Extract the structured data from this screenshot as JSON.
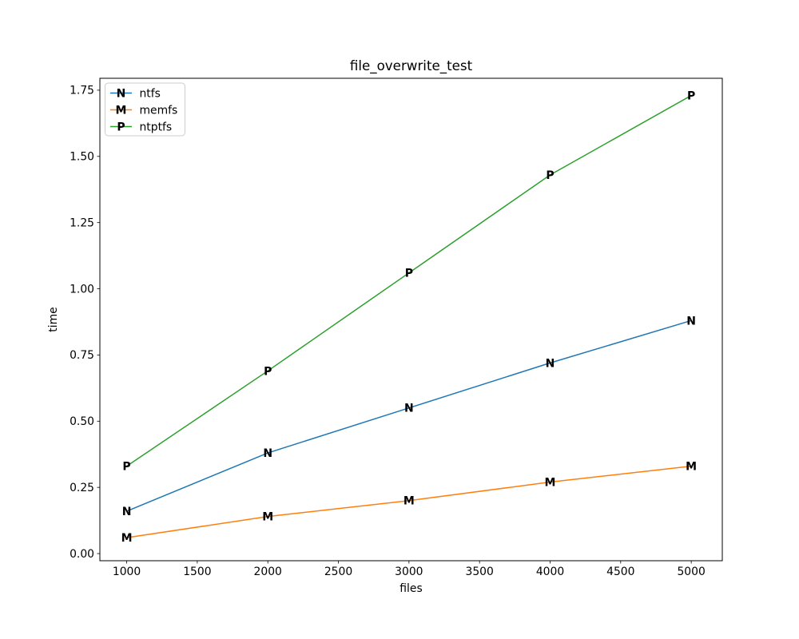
{
  "figure": {
    "title": "file_overwrite_test",
    "xlabel": "files",
    "ylabel": "time"
  },
  "chart_data": {
    "type": "line",
    "title": "file_overwrite_test",
    "xlabel": "files",
    "ylabel": "time",
    "x": [
      1000,
      2000,
      3000,
      4000,
      5000
    ],
    "series": [
      {
        "name": "ntfs",
        "marker": "N",
        "color": "#1f77b4",
        "values": [
          0.16,
          0.38,
          0.55,
          0.72,
          0.88
        ]
      },
      {
        "name": "memfs",
        "marker": "M",
        "color": "#ff7f0e",
        "values": [
          0.06,
          0.14,
          0.2,
          0.27,
          0.33
        ]
      },
      {
        "name": "ntptfs",
        "marker": "P",
        "color": "#2ca02c",
        "values": [
          0.33,
          0.69,
          1.06,
          1.43,
          1.73
        ]
      }
    ],
    "xticks": [
      "1000",
      "1500",
      "2000",
      "2500",
      "3000",
      "3500",
      "4000",
      "4500",
      "5000"
    ],
    "yticks": [
      "0.00",
      "0.25",
      "0.50",
      "0.75",
      "1.00",
      "1.25",
      "1.50",
      "1.75"
    ],
    "xlim": [
      810,
      5220
    ],
    "ylim": [
      -0.027,
      1.795
    ],
    "legend_position": "upper left",
    "grid": false,
    "axis_color": "#000000",
    "legend_border_color": "#cccccc",
    "background_color": "#ffffff"
  }
}
